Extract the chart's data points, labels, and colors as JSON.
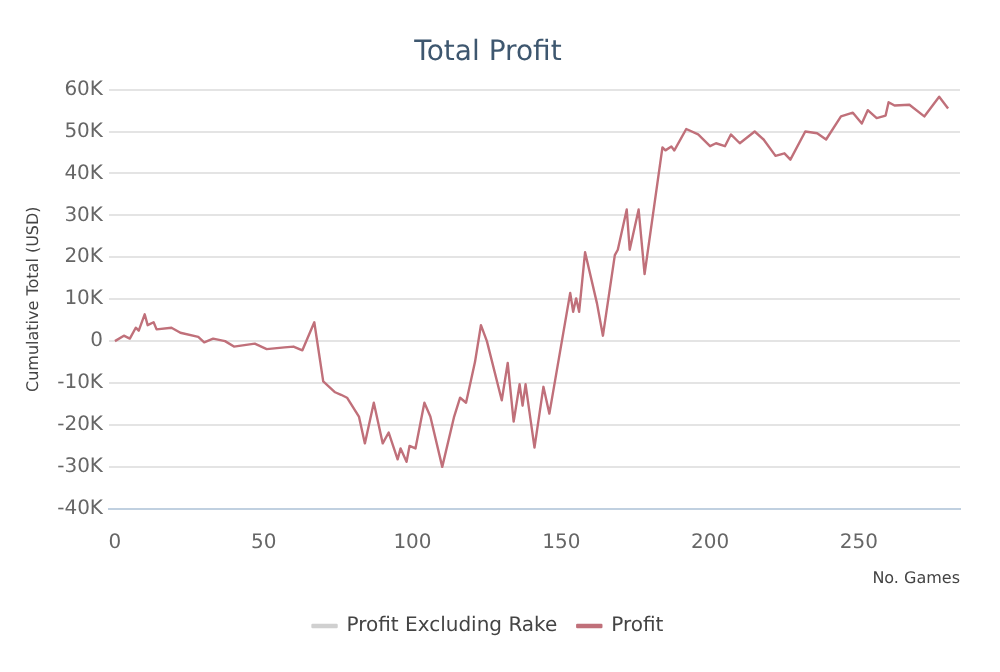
{
  "chart_data": {
    "type": "line",
    "title": "Total Profit",
    "xlabel": "No. Games",
    "ylabel": "Cumulative Total (USD)",
    "xlim": [
      -2,
      284
    ],
    "xticks": [
      0,
      50,
      100,
      150,
      200,
      250
    ],
    "ylim": [
      -40000,
      60000
    ],
    "yticks": [
      {
        "value": -40000,
        "label": "-40K"
      },
      {
        "value": -30000,
        "label": "-30K"
      },
      {
        "value": -20000,
        "label": "-20K"
      },
      {
        "value": -10000,
        "label": "-10K"
      },
      {
        "value": 0,
        "label": "0"
      },
      {
        "value": 10000,
        "label": "10K"
      },
      {
        "value": 20000,
        "label": "20K"
      },
      {
        "value": 30000,
        "label": "30K"
      },
      {
        "value": 40000,
        "label": "40K"
      },
      {
        "value": 50000,
        "label": "50K"
      },
      {
        "value": 60000,
        "label": "60K"
      }
    ],
    "grid": "y",
    "legend": "bottom",
    "marker": "none",
    "series": [
      {
        "name": "Profit Excluding Rake",
        "color": "#d0d0d0"
      },
      {
        "name": "Profit",
        "color": "#c0707a",
        "x": [
          0,
          3,
          5,
          7,
          8,
          10,
          11,
          13,
          14,
          19,
          22,
          28,
          30,
          33,
          37,
          40,
          47,
          51,
          57,
          60,
          63,
          67,
          70,
          74,
          76,
          78,
          82,
          84,
          87,
          90,
          92,
          95,
          96,
          98,
          99,
          101,
          104,
          106,
          110,
          114,
          116,
          118,
          121,
          123,
          125,
          130,
          132,
          134,
          136,
          137,
          138,
          141,
          144,
          146,
          153,
          154,
          155,
          156,
          158,
          162,
          164,
          168,
          169,
          172,
          173,
          176,
          178,
          184,
          185,
          187,
          188,
          192,
          196,
          200,
          202,
          205,
          207,
          210,
          215,
          218,
          222,
          225,
          227,
          232,
          236,
          239,
          244,
          248,
          251,
          253,
          256,
          259,
          260,
          262,
          267,
          272,
          277,
          280
        ],
        "values": [
          0,
          1300,
          600,
          3200,
          2500,
          6400,
          3800,
          4500,
          2800,
          3200,
          2000,
          1000,
          -300,
          600,
          0,
          -1300,
          -600,
          -1900,
          -1500,
          -1300,
          -2200,
          4500,
          -9600,
          -12200,
          -12800,
          -13500,
          -18000,
          -24400,
          -14700,
          -24400,
          -21800,
          -28200,
          -25600,
          -28800,
          -25000,
          -25600,
          -14700,
          -18000,
          -30000,
          -18000,
          -13500,
          -14700,
          -5000,
          3800,
          0,
          -14100,
          -5200,
          -19200,
          -10300,
          -15400,
          -10300,
          -25400,
          -10900,
          -17300,
          11500,
          7000,
          10200,
          7000,
          21200,
          9000,
          1300,
          20500,
          21800,
          31400,
          21800,
          31400,
          16000,
          46200,
          45500,
          46400,
          45500,
          50600,
          49300,
          46500,
          47200,
          46500,
          49300,
          47200,
          50000,
          48100,
          44200,
          44800,
          43300,
          50000,
          49600,
          48100,
          53600,
          54500,
          51900,
          55100,
          53200,
          53800,
          57000,
          56200,
          56400,
          53600,
          58300,
          55500
        ]
      }
    ]
  }
}
